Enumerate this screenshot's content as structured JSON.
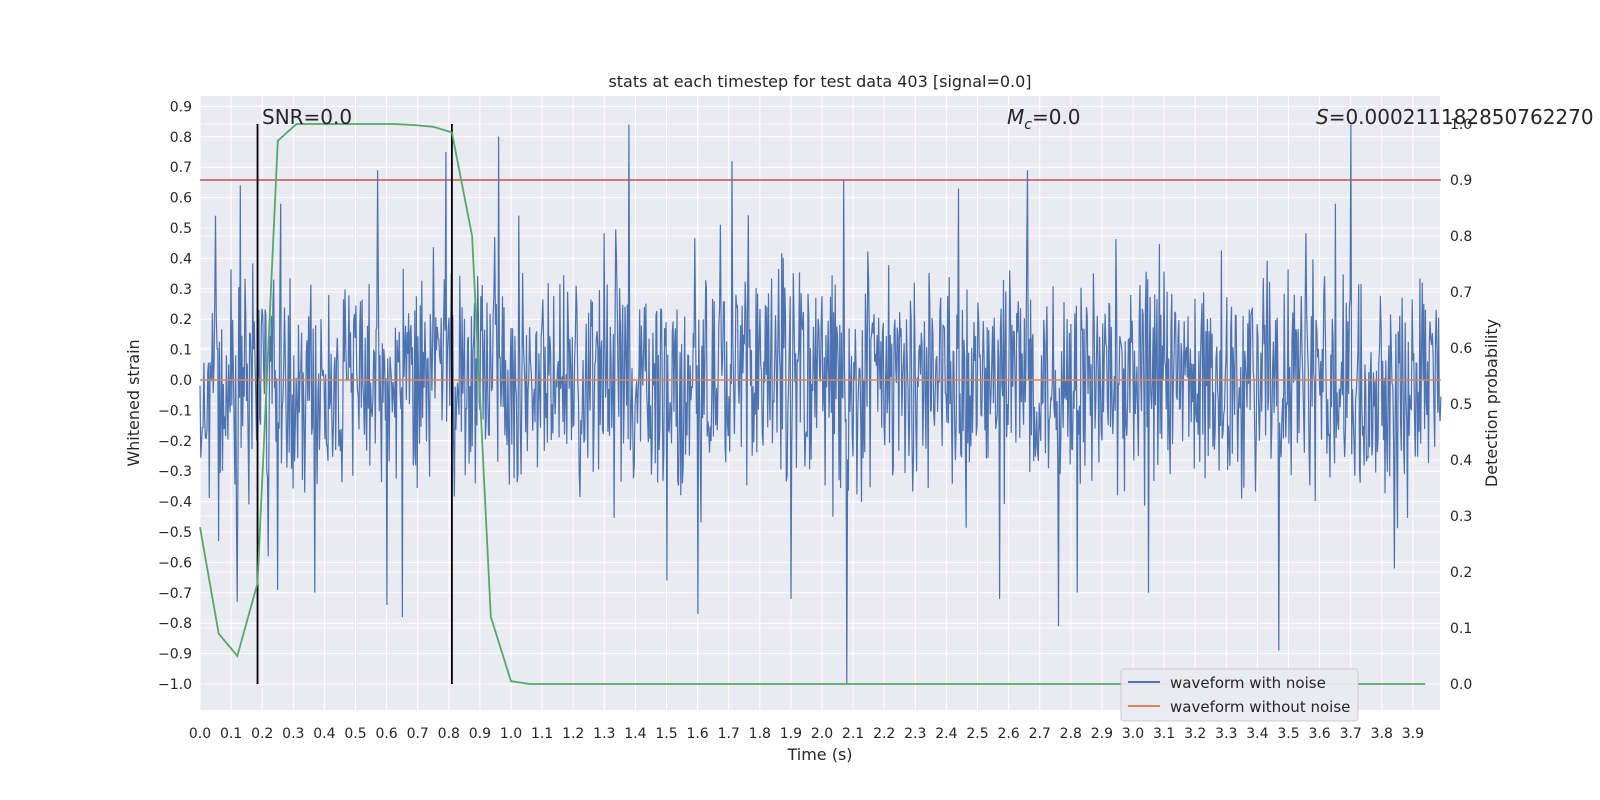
{
  "chart_data": {
    "type": "line",
    "title": "stats at each timestep for test data 403 [signal=0.0]",
    "xlabel": "Time (s)",
    "ylabel": "Whitened strain",
    "y2label": "Detection probability",
    "xlim": [
      0.0,
      3.99
    ],
    "ylim": [
      -1.09,
      0.93
    ],
    "y2lim": [
      -0.05,
      1.0
    ],
    "x_ticks": [
      "0.0",
      "0.1",
      "0.2",
      "0.3",
      "0.4",
      "0.5",
      "0.6",
      "0.7",
      "0.8",
      "0.9",
      "1.0",
      "1.1",
      "1.2",
      "1.3",
      "1.4",
      "1.5",
      "1.6",
      "1.7",
      "1.8",
      "1.9",
      "2.0",
      "2.1",
      "2.2",
      "2.3",
      "2.4",
      "2.5",
      "2.6",
      "2.7",
      "2.8",
      "2.9",
      "3.0",
      "3.1",
      "3.2",
      "3.3",
      "3.4",
      "3.5",
      "3.6",
      "3.7",
      "3.8",
      "3.9"
    ],
    "y_ticks": [
      "0.9",
      "0.8",
      "0.7",
      "0.6",
      "0.5",
      "0.4",
      "0.3",
      "0.2",
      "0.1",
      "0.0",
      "−0.1",
      "−0.2",
      "−0.3",
      "−0.4",
      "−0.5",
      "−0.6",
      "−0.7",
      "−0.8",
      "−0.9",
      "−1.0"
    ],
    "y2_ticks": [
      "1.0",
      "0.9",
      "0.8",
      "0.7",
      "0.6",
      "0.5",
      "0.4",
      "0.3",
      "0.2",
      "0.1",
      "0.0"
    ],
    "grid": true,
    "legend_position": "lower-right",
    "annotations": {
      "snr": "SNR=0.0",
      "mc_symbol": "M",
      "mc_sub": "c",
      "mc_value": "=0.0",
      "s_symbol": "S",
      "s_value": "=0.000211182850762270"
    },
    "vlines_x": [
      0.185,
      0.81
    ],
    "threshold_probability": 0.9,
    "series": [
      {
        "name": "waveform with noise",
        "color": "#4c72b0",
        "axis": "left",
        "description_only": false,
        "peaks": [
          {
            "x": 0.05,
            "y": 0.54
          },
          {
            "x": 0.06,
            "y": -0.53
          },
          {
            "x": 0.13,
            "y": 0.64
          },
          {
            "x": 0.12,
            "y": -0.73
          },
          {
            "x": 0.22,
            "y": -0.58
          },
          {
            "x": 0.26,
            "y": 0.58
          },
          {
            "x": 0.25,
            "y": -0.69
          },
          {
            "x": 0.37,
            "y": -0.7
          },
          {
            "x": 0.57,
            "y": 0.69
          },
          {
            "x": 0.6,
            "y": -0.74
          },
          {
            "x": 0.65,
            "y": -0.78
          },
          {
            "x": 0.79,
            "y": 0.75
          },
          {
            "x": 0.96,
            "y": 0.8
          },
          {
            "x": 1.38,
            "y": 0.84
          },
          {
            "x": 1.5,
            "y": -0.66
          },
          {
            "x": 1.6,
            "y": -0.77
          },
          {
            "x": 1.71,
            "y": 0.72
          },
          {
            "x": 1.9,
            "y": -0.72
          },
          {
            "x": 2.07,
            "y": 0.66
          },
          {
            "x": 2.08,
            "y": -1.0
          },
          {
            "x": 2.44,
            "y": 0.63
          },
          {
            "x": 2.57,
            "y": -0.72
          },
          {
            "x": 2.66,
            "y": 0.69
          },
          {
            "x": 2.76,
            "y": -0.81
          },
          {
            "x": 2.82,
            "y": -0.7
          },
          {
            "x": 3.05,
            "y": -0.7
          },
          {
            "x": 3.47,
            "y": -0.89
          },
          {
            "x": 3.7,
            "y": 0.84
          },
          {
            "x": 3.84,
            "y": -0.62
          },
          {
            "x": 3.65,
            "y": 0.58
          }
        ]
      },
      {
        "name": "waveform without noise",
        "color": "#dd8452",
        "axis": "left",
        "x": [
          0.0,
          3.99
        ],
        "y": [
          0.0,
          0.0
        ]
      },
      {
        "name": "",
        "color": "#55a868",
        "axis": "right",
        "x": [
          0.0,
          0.06,
          0.12,
          0.185,
          0.25,
          0.31,
          0.375,
          0.44,
          0.5,
          0.56,
          0.625,
          0.69,
          0.75,
          0.81,
          0.875,
          0.935,
          1.0,
          1.06,
          3.94
        ],
        "y": [
          0.28,
          0.09,
          0.05,
          0.18,
          0.97,
          1.0,
          1.0,
          1.0,
          1.0,
          1.0,
          1.0,
          0.998,
          0.995,
          0.985,
          0.8,
          0.12,
          0.005,
          0.0,
          0.0
        ]
      },
      {
        "name": "",
        "color": "#c44e52",
        "axis": "right",
        "x": [
          0.0,
          3.99
        ],
        "y": [
          0.9,
          0.9
        ]
      }
    ]
  },
  "colors": {
    "plot_bg": "#eaeaf2",
    "grid": "#ffffff",
    "noise": "#4c72b0",
    "clean": "#dd8452",
    "prob": "#55a868",
    "threshold": "#c44e52",
    "vline": "#000000",
    "text": "#262626"
  }
}
